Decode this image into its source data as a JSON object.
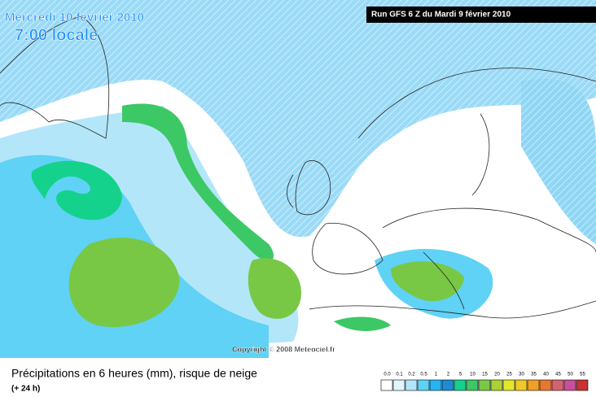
{
  "header": {
    "date": "Mercredi 10 février 2010",
    "time": "7:00 locale",
    "run": "Run GFS 6 Z du Mardi 9 février 2010"
  },
  "copyright": "Copyright © 2008 Meteociel.fr",
  "caption": {
    "title": "Précipitations en 6 heures (mm), risque de neige",
    "subtitle": "(+ 24 h)"
  },
  "legend": {
    "items": [
      {
        "label": "0.0",
        "color": "#ffffff"
      },
      {
        "label": "0.1",
        "color": "#e1f5fd"
      },
      {
        "label": "0.2",
        "color": "#b4e6fa"
      },
      {
        "label": "0.5",
        "color": "#5fd2f5"
      },
      {
        "label": "1",
        "color": "#28b4f0"
      },
      {
        "label": "2",
        "color": "#1e8cd2"
      },
      {
        "label": "5",
        "color": "#14d28c"
      },
      {
        "label": "10",
        "color": "#3cc864"
      },
      {
        "label": "15",
        "color": "#78c846"
      },
      {
        "label": "20",
        "color": "#aad232"
      },
      {
        "label": "25",
        "color": "#e6e628"
      },
      {
        "label": "30",
        "color": "#f0c828"
      },
      {
        "label": "35",
        "color": "#f0a028"
      },
      {
        "label": "40",
        "color": "#e67832"
      },
      {
        "label": "45",
        "color": "#d2646e"
      },
      {
        "label": "50",
        "color": "#c8509b"
      },
      {
        "label": "55",
        "color": "#c83232"
      }
    ]
  }
}
